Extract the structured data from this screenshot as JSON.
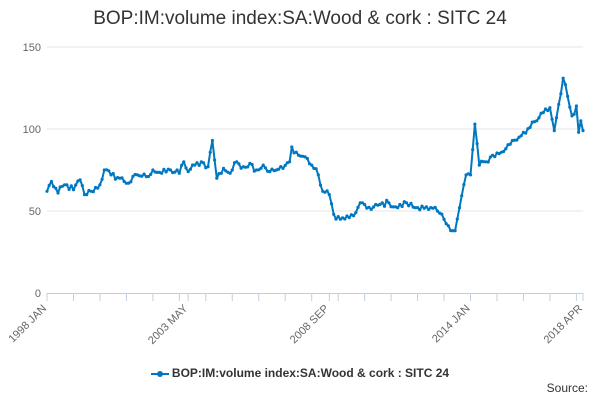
{
  "colors": {
    "series": "#0077c0",
    "grid": "#e6e6e6",
    "axis": "#c0d0e0",
    "text": "#333333",
    "tick_text": "#666666"
  },
  "source_label": "Source:",
  "chart_data": {
    "type": "line",
    "title": "BOP:IM:volume index:SA:Wood & cork : SITC 24",
    "xlabel": "",
    "ylabel": "",
    "ylim": [
      0,
      150
    ],
    "yticks": [
      0,
      50,
      100,
      150
    ],
    "xlim": [
      "1998-01",
      "2018-04"
    ],
    "xticks": [
      "1998 JAN",
      "2003 MAY",
      "2008 SEP",
      "2014 JAN",
      "2018 APR"
    ],
    "legend": "bottom-center",
    "grid": true,
    "series": [
      {
        "name": "BOP:IM:volume index:SA:Wood & cork : SITC 24",
        "anchors": [
          [
            "1998-01",
            62
          ],
          [
            "1998-03",
            68
          ],
          [
            "1998-06",
            61
          ],
          [
            "1998-09",
            66
          ],
          [
            "1999-01",
            63
          ],
          [
            "1999-04",
            69
          ],
          [
            "1999-06",
            60
          ],
          [
            "1999-09",
            62
          ],
          [
            "2000-01",
            66
          ],
          [
            "2000-03",
            75
          ],
          [
            "2000-06",
            72
          ],
          [
            "2000-10",
            70
          ],
          [
            "2001-02",
            67
          ],
          [
            "2001-06",
            72
          ],
          [
            "2001-10",
            71
          ],
          [
            "2002-01",
            75
          ],
          [
            "2002-05",
            73
          ],
          [
            "2002-09",
            75
          ],
          [
            "2003-01",
            73
          ],
          [
            "2003-03",
            80
          ],
          [
            "2003-05",
            74
          ],
          [
            "2003-08",
            78
          ],
          [
            "2003-11",
            80
          ],
          [
            "2004-02",
            77
          ],
          [
            "2004-04",
            93
          ],
          [
            "2004-06",
            70
          ],
          [
            "2004-09",
            76
          ],
          [
            "2004-12",
            73
          ],
          [
            "2005-03",
            80
          ],
          [
            "2005-06",
            77
          ],
          [
            "2005-09",
            79
          ],
          [
            "2005-12",
            75
          ],
          [
            "2006-03",
            78
          ],
          [
            "2006-06",
            74
          ],
          [
            "2006-09",
            75
          ],
          [
            "2006-12",
            76
          ],
          [
            "2007-03",
            80
          ],
          [
            "2007-04",
            89
          ],
          [
            "2007-07",
            84
          ],
          [
            "2007-10",
            83
          ],
          [
            "2008-01",
            78
          ],
          [
            "2008-04",
            72
          ],
          [
            "2008-06",
            62
          ],
          [
            "2008-09",
            60
          ],
          [
            "2008-11",
            48
          ],
          [
            "2009-02",
            45
          ],
          [
            "2009-06",
            46
          ],
          [
            "2009-09",
            49
          ],
          [
            "2009-12",
            55
          ],
          [
            "2010-04",
            51
          ],
          [
            "2010-08",
            54
          ],
          [
            "2010-12",
            55
          ],
          [
            "2011-04",
            52
          ],
          [
            "2011-08",
            55
          ],
          [
            "2011-12",
            52
          ],
          [
            "2012-03",
            53
          ],
          [
            "2012-06",
            51
          ],
          [
            "2012-10",
            50
          ],
          [
            "2013-01",
            45
          ],
          [
            "2013-03",
            41
          ],
          [
            "2013-06",
            38
          ],
          [
            "2013-08",
            52
          ],
          [
            "2013-11",
            72
          ],
          [
            "2014-01",
            72
          ],
          [
            "2014-03",
            103
          ],
          [
            "2014-05",
            78
          ],
          [
            "2014-08",
            80
          ],
          [
            "2014-11",
            84
          ],
          [
            "2015-02",
            85
          ],
          [
            "2015-05",
            88
          ],
          [
            "2015-08",
            93
          ],
          [
            "2015-11",
            95
          ],
          [
            "2016-01",
            98
          ],
          [
            "2016-04",
            101
          ],
          [
            "2016-07",
            105
          ],
          [
            "2016-10",
            110
          ],
          [
            "2017-01",
            113
          ],
          [
            "2017-03",
            99
          ],
          [
            "2017-05",
            115
          ],
          [
            "2017-07",
            131
          ],
          [
            "2017-09",
            120
          ],
          [
            "2017-11",
            108
          ],
          [
            "2018-01",
            114
          ],
          [
            "2018-02",
            98
          ],
          [
            "2018-03",
            105
          ],
          [
            "2018-04",
            99
          ]
        ]
      }
    ]
  }
}
